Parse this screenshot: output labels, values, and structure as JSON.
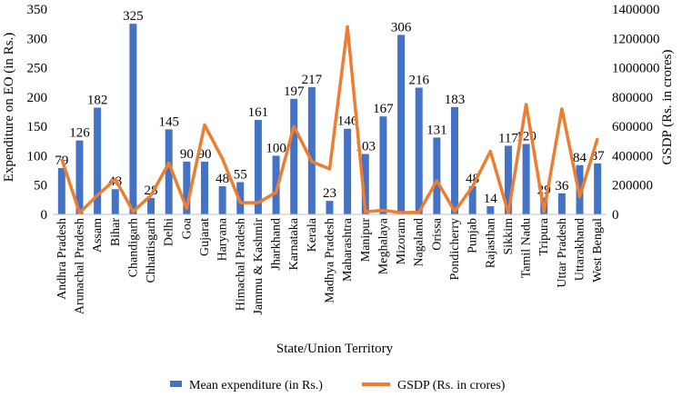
{
  "chart_data": {
    "type": "bar+line",
    "title": "",
    "xlabel": "State/Union Territory",
    "ylabel": "Expenditure on EO (in Rs.)",
    "y2label": "GSDP (Rs. in crores)",
    "ylim": [
      0,
      350
    ],
    "yticks": [
      "0",
      "50",
      "100",
      "150",
      "200",
      "250",
      "300",
      "350"
    ],
    "y2lim": [
      0,
      1400000
    ],
    "y2ticks": [
      "0",
      "200000",
      "400000",
      "600000",
      "800000",
      "1000000",
      "1200000",
      "1400000"
    ],
    "categories": [
      "Andhra Pradesh",
      "Arunachal Pradesh",
      "Assam",
      "Bihar",
      "Chandigarh",
      "Chhattisgarh",
      "Delhi",
      "Goa",
      "Gujarat",
      "Haryana",
      "Himachal Pradesh",
      "Jammu & Kashmir",
      "Jharkhand",
      "Karnataka",
      "Kerala",
      "Madhya Pradesh",
      "Maharashtra",
      "Manipur",
      "Meghalaya",
      "Mizoram",
      "Nagaland",
      "Orissa",
      "Pondicherry",
      "Punjab",
      "Rajasthan",
      "Sikkim",
      "Tamil Nadu",
      "Tripura",
      "Uttar Pradesh",
      "Uttarakhand",
      "West Bengal"
    ],
    "series": [
      {
        "name": "Mean expenditure (in Rs.)",
        "type": "bar",
        "axis": "left",
        "color": "#4472C4",
        "values": [
          79,
          126,
          182,
          43,
          325,
          28,
          145,
          90,
          90,
          48,
          55,
          161,
          100,
          197,
          217,
          23,
          146,
          103,
          167,
          306,
          216,
          131,
          183,
          48,
          14,
          117,
          120,
          29,
          36,
          84,
          87
        ],
        "labels": [
          "79",
          "126",
          "182",
          "43",
          "325",
          "28",
          "145",
          "90",
          "90",
          "48",
          "55",
          "161",
          "100",
          "197",
          "217",
          "23",
          "146",
          "103",
          "167",
          "306",
          "216",
          "131",
          "183",
          "48",
          "14",
          "117",
          "120",
          "29",
          "36",
          "84",
          "87"
        ]
      },
      {
        "name": "GSDP (Rs. in crores)",
        "type": "line",
        "axis": "right",
        "color": "#ED7D31",
        "values": [
          380000,
          10000,
          130000,
          240000,
          20000,
          130000,
          350000,
          40000,
          610000,
          380000,
          80000,
          80000,
          150000,
          600000,
          360000,
          310000,
          1280000,
          18000,
          28000,
          12000,
          15000,
          230000,
          20000,
          190000,
          430000,
          10000,
          750000,
          20000,
          720000,
          120000,
          520000
        ]
      }
    ],
    "legend_position": "bottom",
    "grid": false
  }
}
